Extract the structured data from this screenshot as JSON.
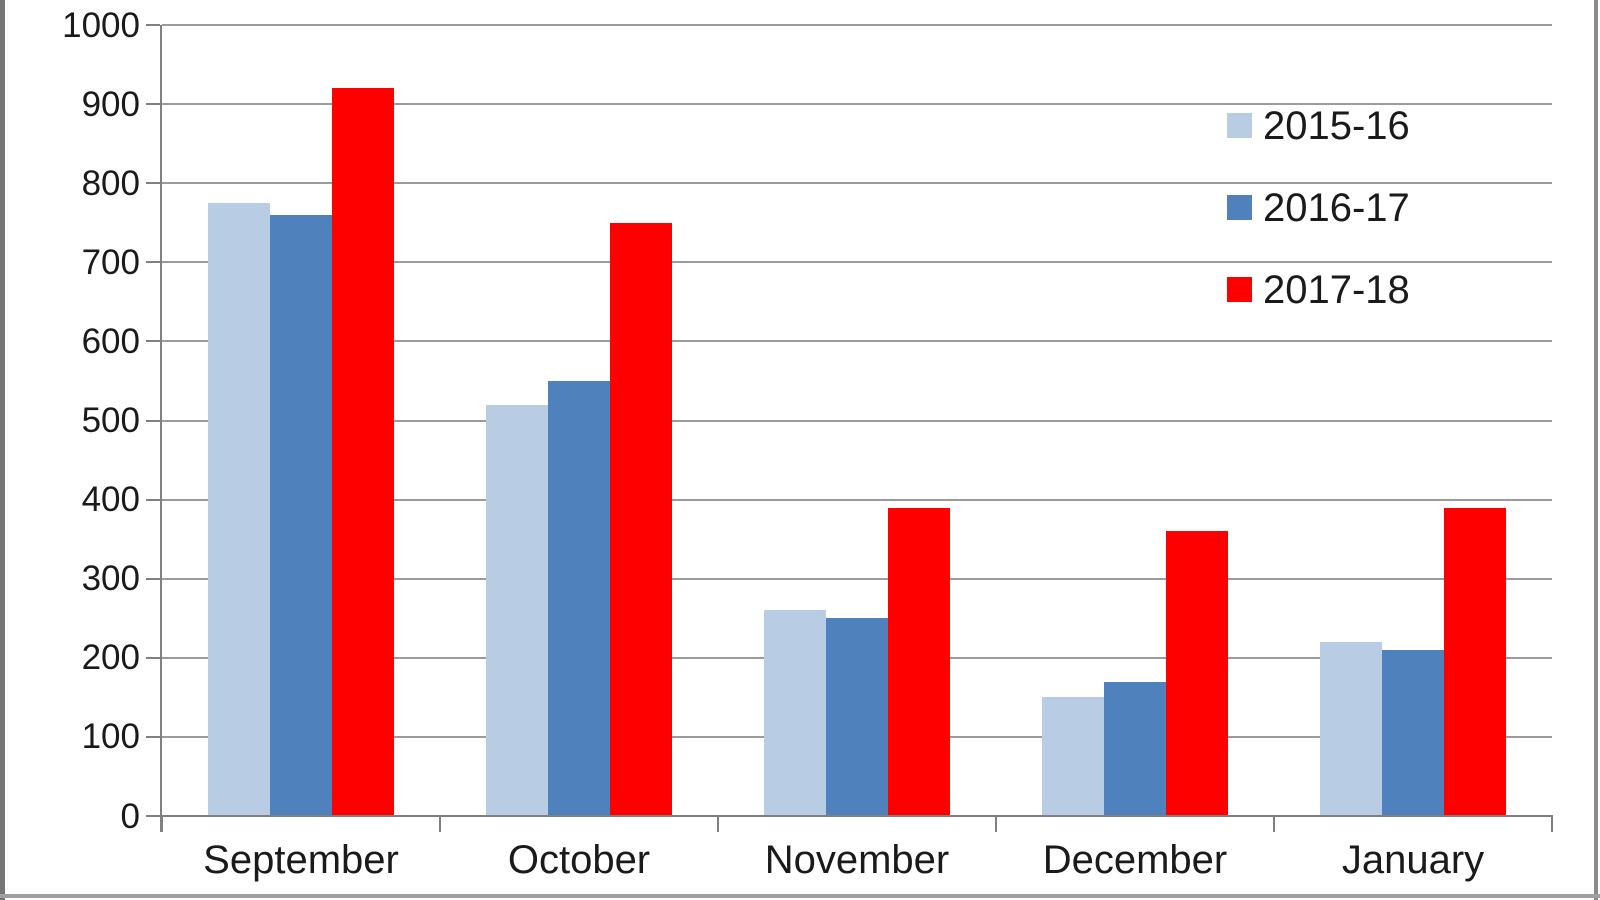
{
  "chart_data": {
    "type": "bar",
    "title": "",
    "xlabel": "",
    "ylabel": "",
    "categories": [
      "September",
      "October",
      "November",
      "December",
      "January"
    ],
    "series": [
      {
        "name": "2015-16",
        "color": "#b8cce4",
        "values": [
          775,
          520,
          260,
          150,
          220
        ]
      },
      {
        "name": "2016-17",
        "color": "#4f81bd",
        "values": [
          760,
          550,
          250,
          170,
          210
        ]
      },
      {
        "name": "2017-18",
        "color": "#ff0000",
        "values": [
          920,
          750,
          390,
          360,
          390
        ]
      }
    ],
    "ylim": [
      0,
      1000
    ],
    "ytick_step": 100,
    "ytick_labels": [
      "0",
      "100",
      "200",
      "300",
      "400",
      "500",
      "600",
      "700",
      "800",
      "900",
      "1000"
    ],
    "grid": true,
    "legend_position": "top-right",
    "legend_entries": [
      "2015-16",
      "2016-17",
      "2017-18"
    ]
  },
  "colors": {
    "gridline": "#9b9b9b",
    "axis": "#808080",
    "label_text": "#1a1a1a",
    "frame_left": "#757575",
    "frame_right": "#8a8a8a",
    "frame_bottom": "#a0a0a0",
    "background": "#ffffff"
  }
}
